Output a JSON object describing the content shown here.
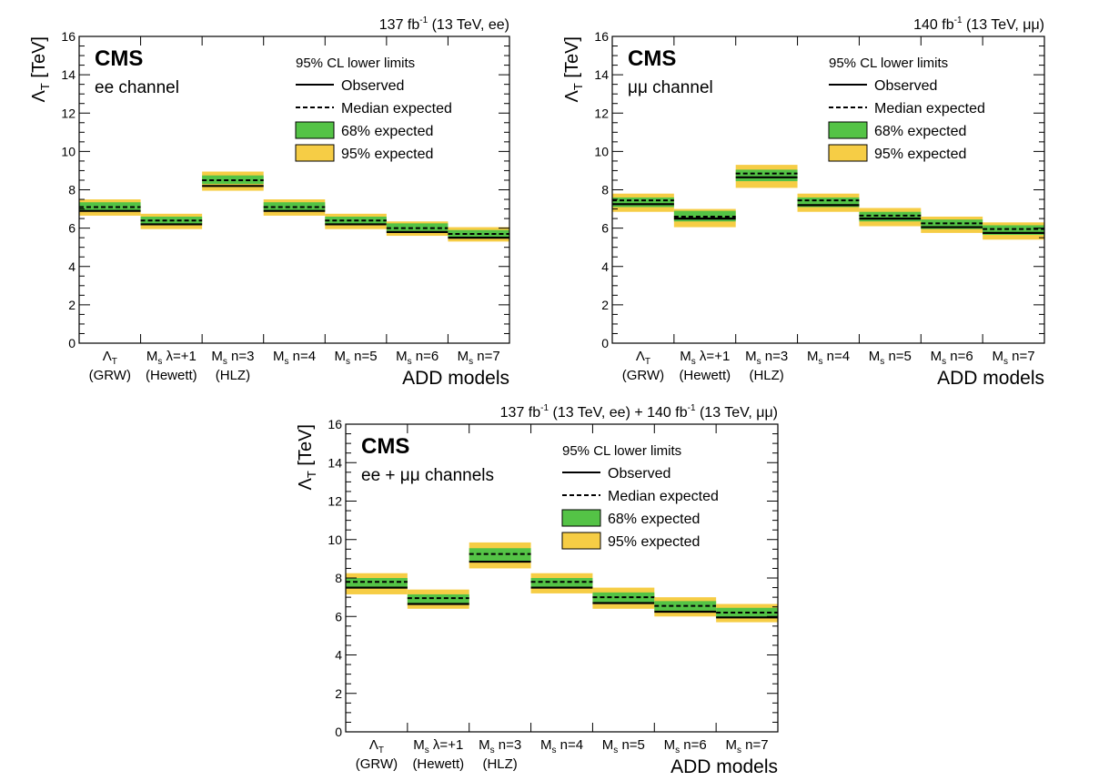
{
  "chart_data": [
    {
      "type": "bar",
      "lumi_label": {
        "lumi": "137 fb",
        "sup": "-1",
        "rest": " (13 TeV, ee)"
      },
      "experiment": "CMS",
      "channel": "ee channel",
      "ylabel": "Λ",
      "ylabel_sub": "T",
      "ylabel_unit": " [TeV]",
      "ylim": [
        0,
        16
      ],
      "yticks": [
        "0",
        "2",
        "4",
        "6",
        "8",
        "10",
        "12",
        "14",
        "16"
      ],
      "xaxis_title": "ADD models",
      "categories": [
        {
          "l1": "Λ",
          "l1sub": "T",
          "l1rest": "",
          "l2": "(GRW)"
        },
        {
          "l1": "M",
          "l1sub": "s",
          "l1rest": " λ=+1",
          "l2": "(Hewett)"
        },
        {
          "l1": "M",
          "l1sub": "s",
          "l1rest": " n=3",
          "l2": "(HLZ)"
        },
        {
          "l1": "M",
          "l1sub": "s",
          "l1rest": " n=4",
          "l2": ""
        },
        {
          "l1": "M",
          "l1sub": "s",
          "l1rest": " n=5",
          "l2": ""
        },
        {
          "l1": "M",
          "l1sub": "s",
          "l1rest": " n=6",
          "l2": ""
        },
        {
          "l1": "M",
          "l1sub": "s",
          "l1rest": " n=7",
          "l2": ""
        }
      ],
      "observed": [
        6.9,
        6.2,
        8.2,
        6.9,
        6.2,
        5.8,
        5.5
      ],
      "expected": [
        7.1,
        6.4,
        8.5,
        7.1,
        6.4,
        6.0,
        5.7
      ],
      "band68": [
        [
          6.9,
          7.35
        ],
        [
          6.2,
          6.6
        ],
        [
          8.3,
          8.75
        ],
        [
          6.9,
          7.35
        ],
        [
          6.2,
          6.6
        ],
        [
          5.85,
          6.25
        ],
        [
          5.55,
          5.9
        ]
      ],
      "band95": [
        [
          6.65,
          7.5
        ],
        [
          5.95,
          6.75
        ],
        [
          7.95,
          8.95
        ],
        [
          6.65,
          7.5
        ],
        [
          5.95,
          6.75
        ],
        [
          5.6,
          6.35
        ],
        [
          5.3,
          6.05
        ]
      ],
      "legend": {
        "title": "95% CL lower limits",
        "observed": "Observed",
        "median": "Median expected",
        "band68": "68% expected",
        "band95": "95% expected"
      },
      "colors": {
        "band68": "#54c346",
        "band95": "#f6cd45"
      }
    },
    {
      "type": "bar",
      "lumi_label": {
        "lumi": "140 fb",
        "sup": "-1",
        "rest": " (13 TeV, μμ)"
      },
      "experiment": "CMS",
      "channel": "μμ channel",
      "ylabel": "Λ",
      "ylabel_sub": "T",
      "ylabel_unit": " [TeV]",
      "ylim": [
        0,
        16
      ],
      "yticks": [
        "0",
        "2",
        "4",
        "6",
        "8",
        "10",
        "12",
        "14",
        "16"
      ],
      "xaxis_title": "ADD models",
      "categories": [
        {
          "l1": "Λ",
          "l1sub": "T",
          "l1rest": "",
          "l2": "(GRW)"
        },
        {
          "l1": "M",
          "l1sub": "s",
          "l1rest": " λ=+1",
          "l2": "(Hewett)"
        },
        {
          "l1": "M",
          "l1sub": "s",
          "l1rest": " n=3",
          "l2": "(HLZ)"
        },
        {
          "l1": "M",
          "l1sub": "s",
          "l1rest": " n=4",
          "l2": ""
        },
        {
          "l1": "M",
          "l1sub": "s",
          "l1rest": " n=5",
          "l2": ""
        },
        {
          "l1": "M",
          "l1sub": "s",
          "l1rest": " n=6",
          "l2": ""
        },
        {
          "l1": "M",
          "l1sub": "s",
          "l1rest": " n=7",
          "l2": ""
        }
      ],
      "observed": [
        7.25,
        6.5,
        8.65,
        7.2,
        6.5,
        6.05,
        5.75
      ],
      "expected": [
        7.45,
        6.6,
        8.85,
        7.45,
        6.65,
        6.25,
        5.95
      ],
      "band68": [
        [
          7.1,
          7.6
        ],
        [
          6.35,
          6.9
        ],
        [
          8.45,
          9.05
        ],
        [
          7.1,
          7.6
        ],
        [
          6.35,
          6.85
        ],
        [
          5.95,
          6.45
        ],
        [
          5.65,
          6.15
        ]
      ],
      "band95": [
        [
          6.85,
          7.8
        ],
        [
          6.05,
          7.0
        ],
        [
          8.1,
          9.3
        ],
        [
          6.85,
          7.8
        ],
        [
          6.1,
          7.05
        ],
        [
          5.75,
          6.6
        ],
        [
          5.4,
          6.3
        ]
      ],
      "legend": {
        "title": "95% CL lower limits",
        "observed": "Observed",
        "median": "Median expected",
        "band68": "68% expected",
        "band95": "95% expected"
      },
      "colors": {
        "band68": "#54c346",
        "band95": "#f6cd45"
      }
    },
    {
      "type": "bar",
      "lumi_label": {
        "lumi": "137 fb",
        "sup": "-1",
        "rest": " (13 TeV, ee) + 140 fb",
        "sup2": "-1",
        "rest2": " (13 TeV, μμ)"
      },
      "experiment": "CMS",
      "channel": "ee + μμ channels",
      "ylabel": "Λ",
      "ylabel_sub": "T",
      "ylabel_unit": " [TeV]",
      "ylim": [
        0,
        16
      ],
      "yticks": [
        "0",
        "2",
        "4",
        "6",
        "8",
        "10",
        "12",
        "14",
        "16"
      ],
      "xaxis_title": "ADD models",
      "categories": [
        {
          "l1": "Λ",
          "l1sub": "T",
          "l1rest": "",
          "l2": "(GRW)"
        },
        {
          "l1": "M",
          "l1sub": "s",
          "l1rest": " λ=+1",
          "l2": "(Hewett)"
        },
        {
          "l1": "M",
          "l1sub": "s",
          "l1rest": " n=3",
          "l2": "(HLZ)"
        },
        {
          "l1": "M",
          "l1sub": "s",
          "l1rest": " n=4",
          "l2": ""
        },
        {
          "l1": "M",
          "l1sub": "s",
          "l1rest": " n=5",
          "l2": ""
        },
        {
          "l1": "M",
          "l1sub": "s",
          "l1rest": " n=6",
          "l2": ""
        },
        {
          "l1": "M",
          "l1sub": "s",
          "l1rest": " n=7",
          "l2": ""
        }
      ],
      "observed": [
        7.5,
        6.65,
        8.85,
        7.5,
        6.7,
        6.25,
        5.95
      ],
      "expected": [
        7.8,
        6.95,
        9.25,
        7.8,
        7.0,
        6.55,
        6.2
      ],
      "band68": [
        [
          7.45,
          8.0
        ],
        [
          6.7,
          7.15
        ],
        [
          8.85,
          9.55
        ],
        [
          7.5,
          8.0
        ],
        [
          6.7,
          7.25
        ],
        [
          6.3,
          6.8
        ],
        [
          5.95,
          6.45
        ]
      ],
      "band95": [
        [
          7.15,
          8.25
        ],
        [
          6.4,
          7.4
        ],
        [
          8.5,
          9.85
        ],
        [
          7.2,
          8.25
        ],
        [
          6.4,
          7.5
        ],
        [
          6.0,
          7.0
        ],
        [
          5.7,
          6.65
        ]
      ],
      "legend": {
        "title": "95% CL lower limits",
        "observed": "Observed",
        "median": "Median expected",
        "band68": "68% expected",
        "band95": "95% expected"
      },
      "colors": {
        "band68": "#54c346",
        "band95": "#f6cd45"
      }
    }
  ]
}
